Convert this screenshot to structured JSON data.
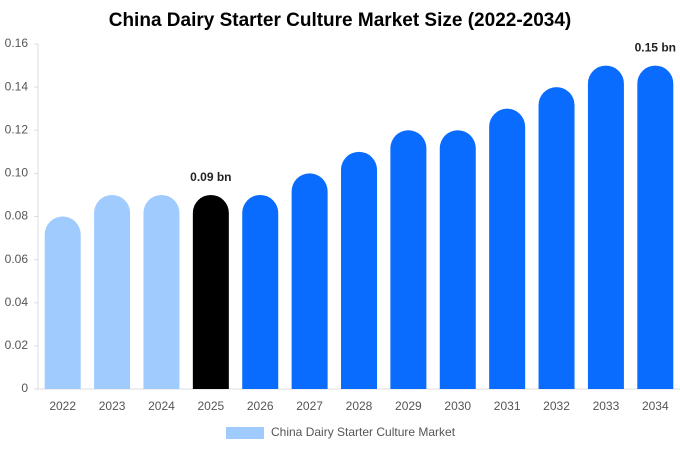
{
  "chart_data": {
    "type": "bar",
    "title": "China Dairy Starter Culture Market Size (2022-2034)",
    "categories": [
      "2022",
      "2023",
      "2024",
      "2025",
      "2026",
      "2027",
      "2028",
      "2029",
      "2030",
      "2031",
      "2032",
      "2033",
      "2034"
    ],
    "series": [
      {
        "name": "China Dairy Starter Culture Market",
        "color": "#a0cbff",
        "values": [
          0.08,
          0.09,
          0.09,
          0.09,
          0.09,
          0.1,
          0.11,
          0.12,
          0.12,
          0.13,
          0.14,
          0.15,
          0.15
        ],
        "value_labels": [
          null,
          null,
          null,
          "0.09 bn",
          null,
          null,
          null,
          null,
          null,
          null,
          null,
          null,
          "0.15 bn"
        ],
        "bar_colors": [
          "#a0cbff",
          "#a0cbff",
          "#a0cbff",
          "#000000",
          "#0a6cff",
          "#0a6cff",
          "#0a6cff",
          "#0a6cff",
          "#0a6cff",
          "#0a6cff",
          "#0a6cff",
          "#0a6cff",
          "#0a6cff"
        ]
      }
    ],
    "ylim": [
      0,
      0.16
    ],
    "yticks": [
      0,
      0.02,
      0.04,
      0.06,
      0.08,
      {
        "value": 0.1,
        "label": "0.10"
      },
      0.12,
      0.14,
      0.16
    ],
    "grid": false,
    "legend": "bottom"
  }
}
